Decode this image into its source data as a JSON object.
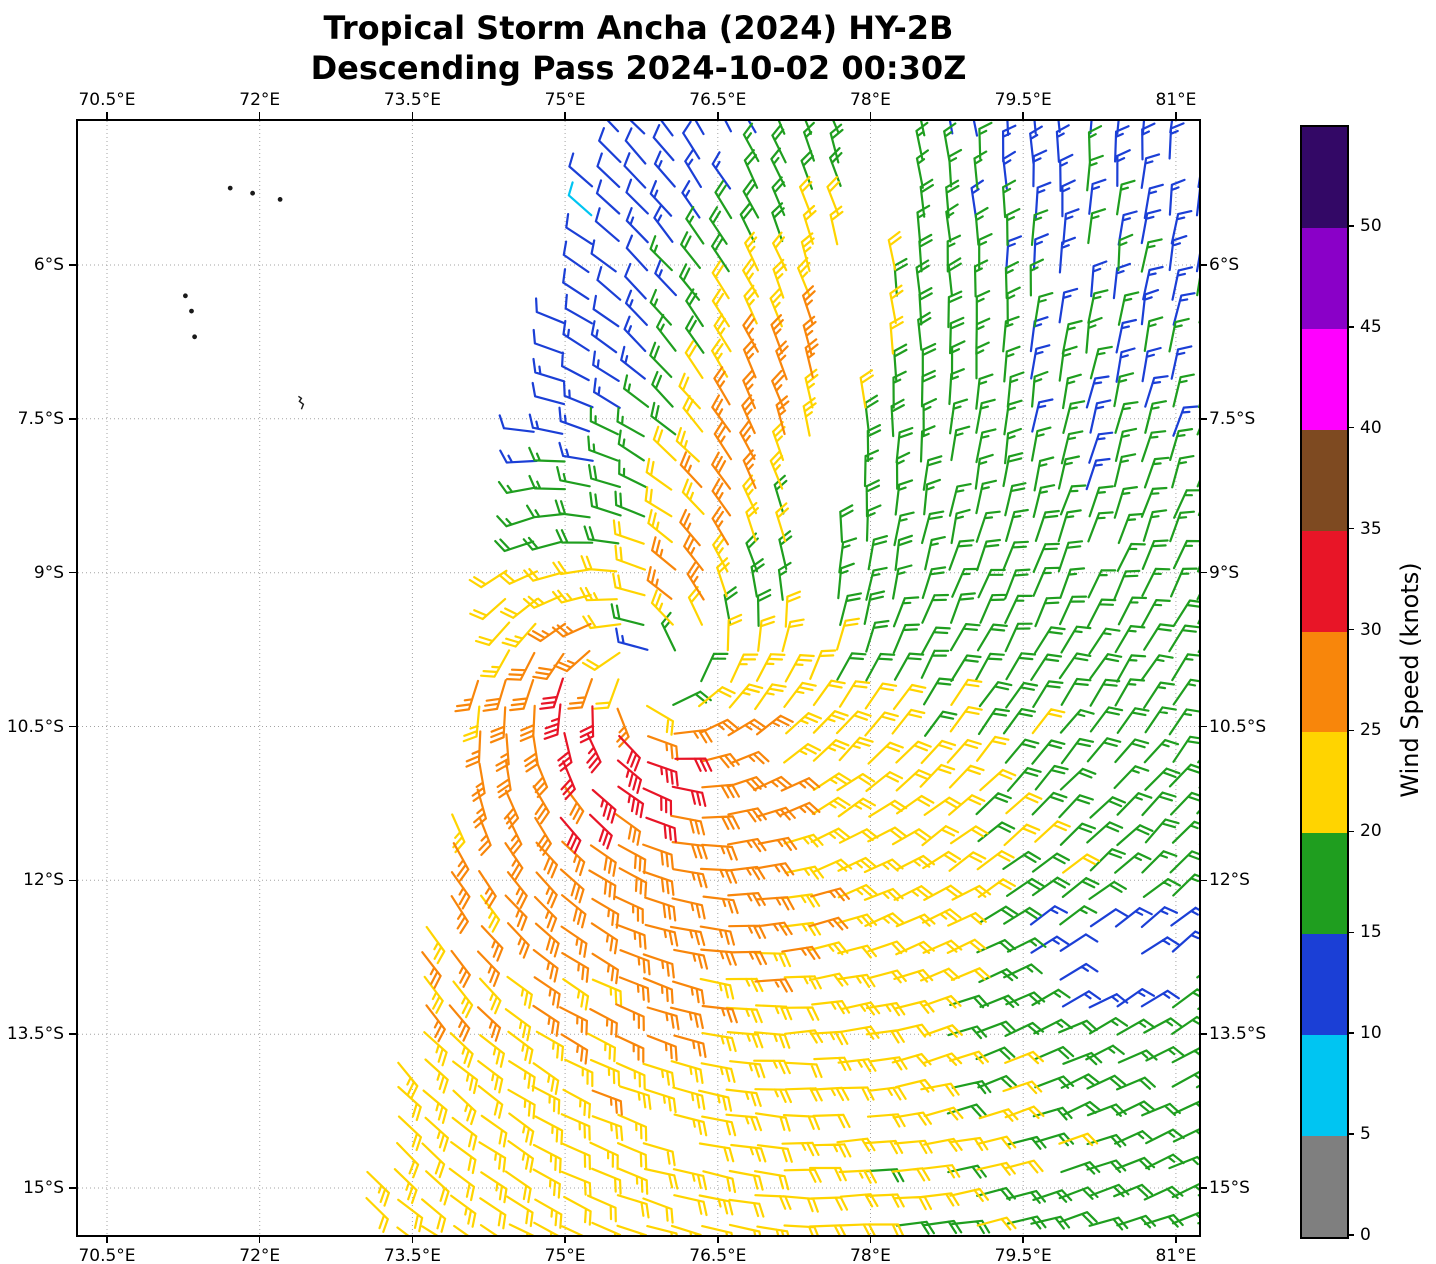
{
  "title": {
    "line1": "Tropical Storm Ancha (2024) HY-2B",
    "line2": "Descending Pass 2024-10-02 00:30Z"
  },
  "colorbar": {
    "label": "Wind Speed (knots)",
    "tick_values": [
      0,
      5,
      10,
      15,
      20,
      25,
      30,
      35,
      40,
      45,
      50
    ],
    "bounds": [
      0,
      5,
      10,
      15,
      20,
      25,
      30,
      35,
      40,
      45,
      50,
      55
    ],
    "colors": [
      "#7f7f7f",
      "#00c5f2",
      "#1b3fd6",
      "#1f9e1f",
      "#ffd400",
      "#f8860b",
      "#e81527",
      "#7e4a21",
      "#ff00ff",
      "#8a00c8",
      "#330866"
    ]
  },
  "chart_data": {
    "type": "wind_barb_map",
    "satellite": "HY-2B",
    "pass_type": "Descending",
    "pass_time_utc": "2024-10-02 00:30Z",
    "storm_name": "Ancha",
    "storm_year": 2024,
    "units": "knots",
    "axes": {
      "lon_min": 70.215,
      "lon_max": 81.227,
      "lat_min": -15.458,
      "lat_max": -4.596,
      "lon_ticks": [
        70.5,
        72,
        73.5,
        75,
        76.5,
        78,
        79.5,
        81
      ],
      "lon_tick_labels": [
        "70.5°E",
        "72°E",
        "73.5°E",
        "75°E",
        "76.5°E",
        "78°E",
        "79.5°E",
        "81°E"
      ],
      "lat_ticks": [
        -6,
        -7.5,
        -9,
        -10.5,
        -12,
        -13.5,
        -15
      ],
      "lat_tick_labels": [
        "6°S",
        "7.5°S",
        "9°S",
        "10.5°S",
        "12°S",
        "13.5°S",
        "15°S"
      ],
      "grid": true
    },
    "wind_field_model": {
      "center_lon": 75.85,
      "center_lat": -10.05,
      "vmax_kt": 27.5,
      "rmw_deg": 0.85,
      "inner_exp": 0.45,
      "outer_exp": 0.28,
      "inflow_deg": 20,
      "aniso_amp": 0.25,
      "strong_azimuth_deg": 225,
      "bg_north": {
        "u": -6,
        "v": -3
      },
      "bg_south": {
        "u": -3,
        "v": -0.5
      },
      "bg_north_lat": -7,
      "bg_south_lat": -13,
      "ridge": {
        "amp_kt": 13,
        "azimuth_deg": 22,
        "az_sigma_deg": 17,
        "radius_deg": 3.0,
        "radius_sigma_deg": 2.8
      },
      "weak_blob": {
        "lon": 80.2,
        "lat": -12.8,
        "rlon": 0.9,
        "rlat": 0.5,
        "amp": 0.45
      },
      "speed_cap_kt": 34.4,
      "speed_floor_kt": 5.5
    },
    "swath": {
      "grid_dlon_deg": 0.272,
      "grid_dlat_deg": 0.266,
      "lon_start": 72.8,
      "lon_end": 81.25,
      "lat_start": -4.72,
      "lat_end": -15.45,
      "left_edge": {
        "lon_at_lat_ref": 72.95,
        "lat_ref": -15.4,
        "slope_deg_per_deg": 0.2315,
        "scallop_amp": 0.08
      },
      "seam": {
        "lat_end": -9.8,
        "lat_span": 5.2,
        "lon_base": 77.35,
        "lon_shift": 0.9,
        "width_min": 0.14,
        "width_max": 0.3
      },
      "eye_radius_deg": 0.22,
      "dropout_gap": {
        "lon": 80.25,
        "lat": -12.85,
        "rlon": 0.75,
        "rlat": 0.3,
        "skip_prob": 0.6
      },
      "random_dropout": 0.02
    },
    "islands": [
      {
        "lon": 71.71,
        "lat": -5.25,
        "shape": "dot"
      },
      {
        "lon": 71.93,
        "lat": -5.3,
        "shape": "dot"
      },
      {
        "lon": 72.2,
        "lat": -5.36,
        "shape": "dot"
      },
      {
        "lon": 71.27,
        "lat": -6.3,
        "shape": "dot"
      },
      {
        "lon": 71.33,
        "lat": -6.45,
        "shape": "dot"
      },
      {
        "lon": 71.36,
        "lat": -6.7,
        "shape": "dot"
      },
      {
        "lon": 72.38,
        "lat": -7.28,
        "shape": "squiggle"
      }
    ]
  }
}
